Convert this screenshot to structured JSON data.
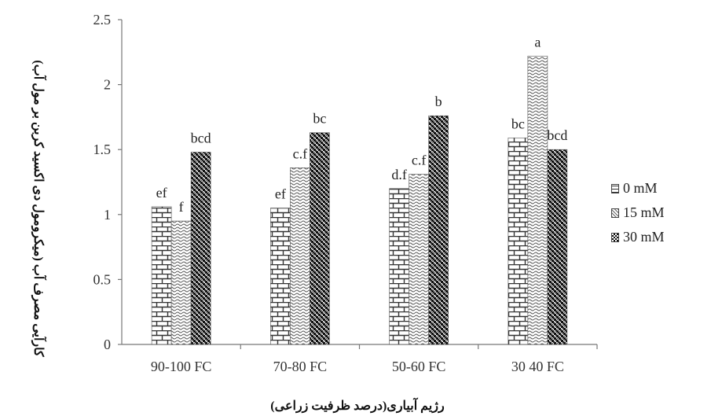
{
  "chart_data": {
    "type": "bar",
    "ylabel": "کارآیی مصرف آب (میکرومول دی اکسید کربن بر مول آب)",
    "xlabel": "رژیم آبیاری(درصد ظرفیت زراعی)",
    "ylim": [
      0,
      2.5
    ],
    "yticks": [
      "0",
      "0.5",
      "1",
      "1.5",
      "2",
      "2.5"
    ],
    "ytick_values": [
      0,
      0.5,
      1,
      1.5,
      2,
      2.5
    ],
    "categories": [
      "90-100 FC",
      "70-80 FC",
      "50-60 FC",
      "30 40 FC"
    ],
    "series": [
      {
        "name": "0 mM",
        "values": [
          1.06,
          1.05,
          1.2,
          1.59
        ],
        "labels": [
          "ef",
          "ef",
          "d.f",
          "bc"
        ],
        "pattern": "brick"
      },
      {
        "name": "15 mM",
        "values": [
          0.95,
          1.36,
          1.31,
          2.22
        ],
        "labels": [
          "f",
          "c.f",
          "c.f",
          "a"
        ],
        "pattern": "wave"
      },
      {
        "name": "30 mM",
        "values": [
          1.48,
          1.63,
          1.76,
          1.5
        ],
        "labels": [
          "bcd",
          "bc",
          "b",
          "bcd"
        ],
        "pattern": "check"
      }
    ],
    "legend_position": "right",
    "grid": false
  },
  "legend": {
    "items": [
      {
        "label": "0 mM",
        "pattern": "brick"
      },
      {
        "label": "15 mM",
        "pattern": "wave"
      },
      {
        "label": "30 mM",
        "pattern": "check"
      }
    ]
  }
}
